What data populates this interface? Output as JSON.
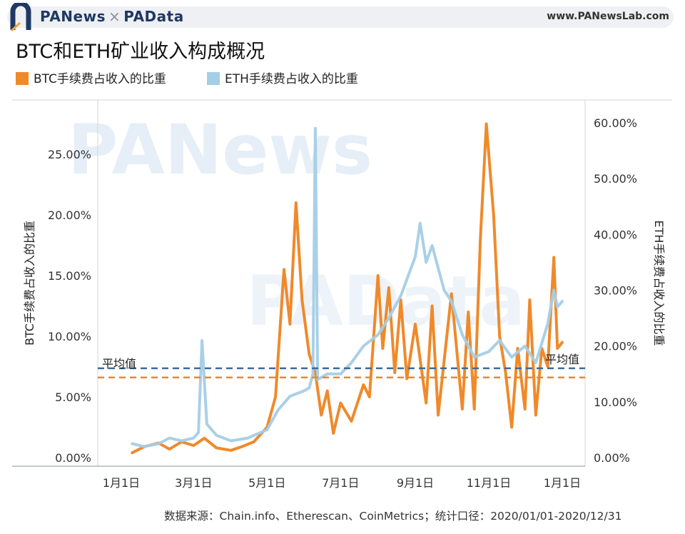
{
  "header": {
    "brand_left": "PANews",
    "brand_sep": "×",
    "brand_right": "PAData",
    "url": "www.PANewsLab.com"
  },
  "watermarks": [
    "PANews",
    "PAData"
  ],
  "colors": {
    "btc": "#ef8a2b",
    "eth": "#a4cde6",
    "btc_avg": "#e8892e",
    "eth_avg": "#3b6b9c",
    "brand": "#1f3864"
  },
  "chart_data": {
    "type": "line",
    "title": "BTC和ETH矿业收入构成概况",
    "legend_position": "top-left",
    "x_ticks": [
      "1月1日",
      "3月1日",
      "5月1日",
      "7月1日",
      "9月1日",
      "11月1日",
      "1月1日"
    ],
    "y_left": {
      "label": "BTC手续费占收入的比重",
      "ticks": [
        "0.00%",
        "5.00%",
        "10.00%",
        "15.00%",
        "20.00%",
        "25.00%"
      ],
      "range": [
        0,
        28
      ]
    },
    "y_right": {
      "label": "ETH手续费占收入的比重",
      "ticks": [
        "0.00%",
        "10.00%",
        "20.00%",
        "30.00%",
        "40.00%",
        "50.00%",
        "60.00%"
      ],
      "range": [
        0,
        64
      ]
    },
    "average_label": "平均值",
    "btc_average": 6.6,
    "eth_average": 16.0,
    "series": [
      {
        "name": "BTC手续费占收入的比重",
        "axis": "left",
        "points": [
          [
            "2020-01-10",
            0.4
          ],
          [
            "2020-01-20",
            0.9
          ],
          [
            "2020-02-01",
            1.2
          ],
          [
            "2020-02-10",
            0.7
          ],
          [
            "2020-02-20",
            1.3
          ],
          [
            "2020-03-01",
            1.0
          ],
          [
            "2020-03-10",
            1.6
          ],
          [
            "2020-03-20",
            0.8
          ],
          [
            "2020-04-01",
            0.6
          ],
          [
            "2020-04-10",
            0.9
          ],
          [
            "2020-04-20",
            1.3
          ],
          [
            "2020-05-01",
            2.5
          ],
          [
            "2020-05-08",
            5.0
          ],
          [
            "2020-05-15",
            15.5
          ],
          [
            "2020-05-20",
            11.0
          ],
          [
            "2020-05-25",
            21.0
          ],
          [
            "2020-05-30",
            13.0
          ],
          [
            "2020-06-05",
            8.5
          ],
          [
            "2020-06-10",
            7.0
          ],
          [
            "2020-06-15",
            3.5
          ],
          [
            "2020-06-20",
            5.5
          ],
          [
            "2020-06-25",
            2.0
          ],
          [
            "2020-07-01",
            4.5
          ],
          [
            "2020-07-10",
            3.0
          ],
          [
            "2020-07-20",
            6.0
          ],
          [
            "2020-07-25",
            5.0
          ],
          [
            "2020-08-01",
            15.0
          ],
          [
            "2020-08-05",
            9.0
          ],
          [
            "2020-08-10",
            14.0
          ],
          [
            "2020-08-15",
            7.0
          ],
          [
            "2020-08-20",
            13.0
          ],
          [
            "2020-08-25",
            6.5
          ],
          [
            "2020-09-01",
            11.0
          ],
          [
            "2020-09-10",
            4.5
          ],
          [
            "2020-09-15",
            12.5
          ],
          [
            "2020-09-20",
            3.5
          ],
          [
            "2020-10-01",
            13.5
          ],
          [
            "2020-10-10",
            4.0
          ],
          [
            "2020-10-15",
            12.0
          ],
          [
            "2020-10-20",
            4.0
          ],
          [
            "2020-10-25",
            18.0
          ],
          [
            "2020-10-30",
            27.5
          ],
          [
            "2020-11-05",
            20.0
          ],
          [
            "2020-11-10",
            10.0
          ],
          [
            "2020-11-15",
            7.0
          ],
          [
            "2020-11-20",
            2.5
          ],
          [
            "2020-11-25",
            9.0
          ],
          [
            "2020-12-01",
            4.0
          ],
          [
            "2020-12-05",
            13.0
          ],
          [
            "2020-12-10",
            3.5
          ],
          [
            "2020-12-15",
            9.0
          ],
          [
            "2020-12-20",
            7.5
          ],
          [
            "2020-12-25",
            16.5
          ],
          [
            "2020-12-28",
            9.0
          ],
          [
            "2021-01-01",
            9.5
          ]
        ]
      },
      {
        "name": "ETH手续费占收入的比重",
        "axis": "right",
        "points": [
          [
            "2020-01-10",
            2.5
          ],
          [
            "2020-01-20",
            2.0
          ],
          [
            "2020-02-01",
            2.5
          ],
          [
            "2020-02-10",
            3.5
          ],
          [
            "2020-02-20",
            3.0
          ],
          [
            "2020-03-01",
            3.5
          ],
          [
            "2020-03-05",
            4.5
          ],
          [
            "2020-03-08",
            21.0
          ],
          [
            "2020-03-12",
            6.0
          ],
          [
            "2020-03-20",
            4.0
          ],
          [
            "2020-04-01",
            3.0
          ],
          [
            "2020-04-15",
            3.5
          ],
          [
            "2020-05-01",
            5.0
          ],
          [
            "2020-05-10",
            8.5
          ],
          [
            "2020-05-20",
            11.0
          ],
          [
            "2020-06-01",
            12.0
          ],
          [
            "2020-06-05",
            12.5
          ],
          [
            "2020-06-08",
            15.0
          ],
          [
            "2020-06-10",
            59.0
          ],
          [
            "2020-06-12",
            14.0
          ],
          [
            "2020-06-20",
            15.0
          ],
          [
            "2020-07-01",
            15.0
          ],
          [
            "2020-07-10",
            17.0
          ],
          [
            "2020-07-20",
            20.0
          ],
          [
            "2020-08-01",
            22.0
          ],
          [
            "2020-08-10",
            25.0
          ],
          [
            "2020-08-20",
            29.0
          ],
          [
            "2020-09-01",
            36.0
          ],
          [
            "2020-09-05",
            42.0
          ],
          [
            "2020-09-10",
            35.0
          ],
          [
            "2020-09-15",
            38.0
          ],
          [
            "2020-09-25",
            30.0
          ],
          [
            "2020-10-01",
            28.0
          ],
          [
            "2020-10-10",
            22.0
          ],
          [
            "2020-10-20",
            18.0
          ],
          [
            "2020-11-01",
            19.0
          ],
          [
            "2020-11-10",
            21.0
          ],
          [
            "2020-11-20",
            18.0
          ],
          [
            "2020-12-01",
            20.0
          ],
          [
            "2020-12-10",
            17.0
          ],
          [
            "2020-12-20",
            24.0
          ],
          [
            "2020-12-25",
            30.0
          ],
          [
            "2020-12-28",
            27.0
          ],
          [
            "2021-01-01",
            28.0
          ]
        ]
      }
    ]
  },
  "source_note": "数据来源：Chain.info、Etherescan、CoinMetrics；统计口径：2020/01/01-2020/12/31"
}
